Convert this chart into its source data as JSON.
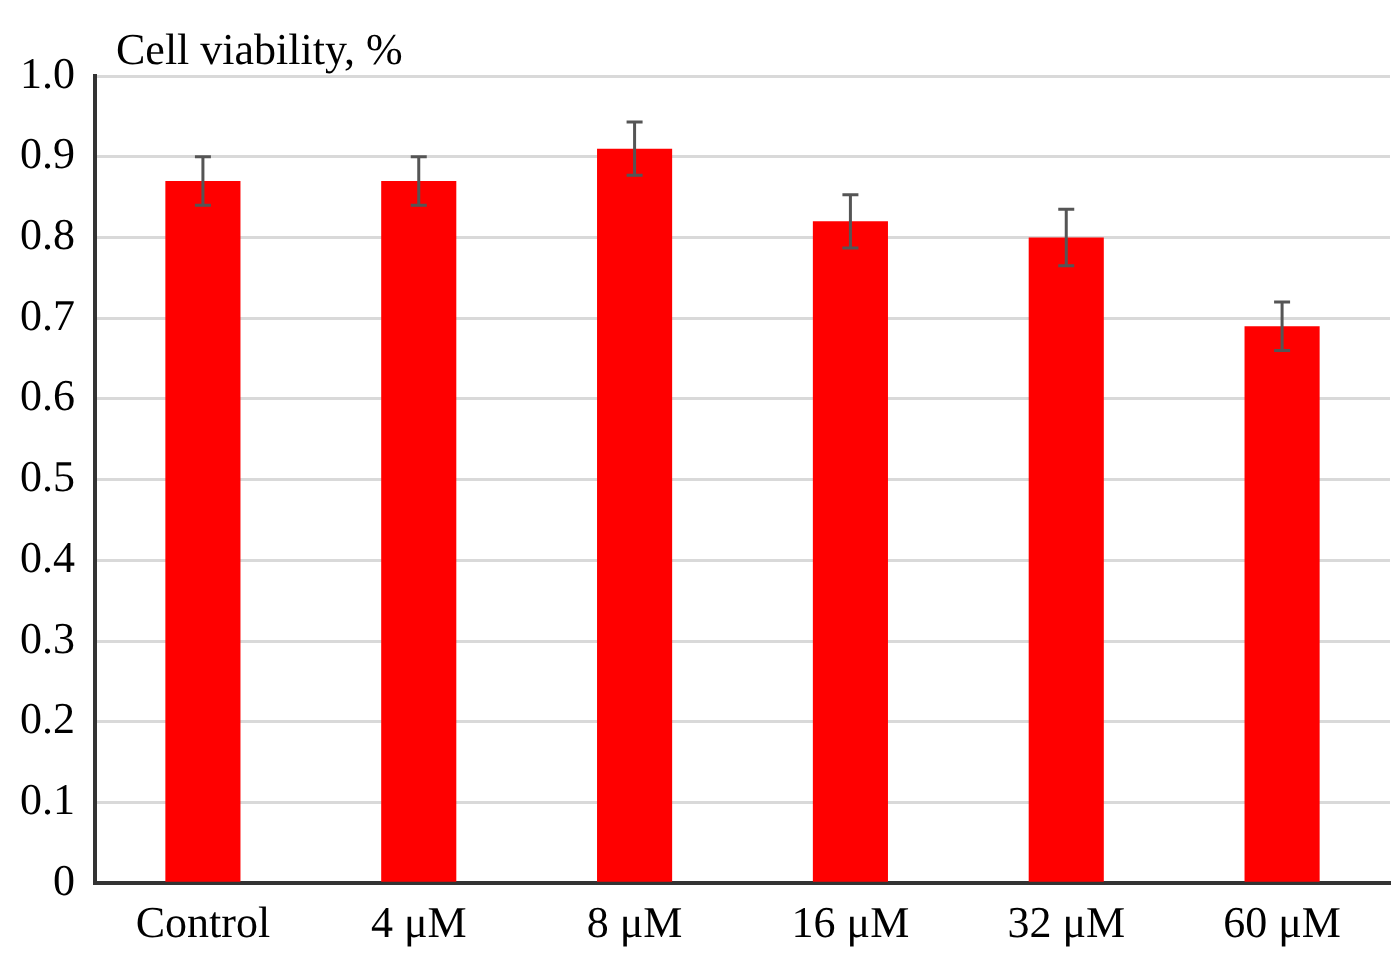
{
  "chart_data": {
    "type": "bar",
    "ylabel": "Cell viability, %",
    "categories": [
      "Control",
      "4 μM",
      "8 μM",
      "16 μM",
      "32 μM",
      "60 μM"
    ],
    "values": [
      0.87,
      0.87,
      0.91,
      0.82,
      0.8,
      0.69
    ],
    "errors": [
      0.03,
      0.03,
      0.033,
      0.033,
      0.035,
      0.03
    ],
    "color": "#ff0000",
    "ylim": [
      0,
      1
    ],
    "yticks": [
      {
        "value": 0,
        "label": "0"
      },
      0.1,
      0.2,
      0.3,
      0.4,
      0.5,
      0.6,
      0.7,
      0.8,
      0.9,
      {
        "value": 1,
        "label": "1.0"
      }
    ],
    "grid": "y",
    "legend": false
  }
}
